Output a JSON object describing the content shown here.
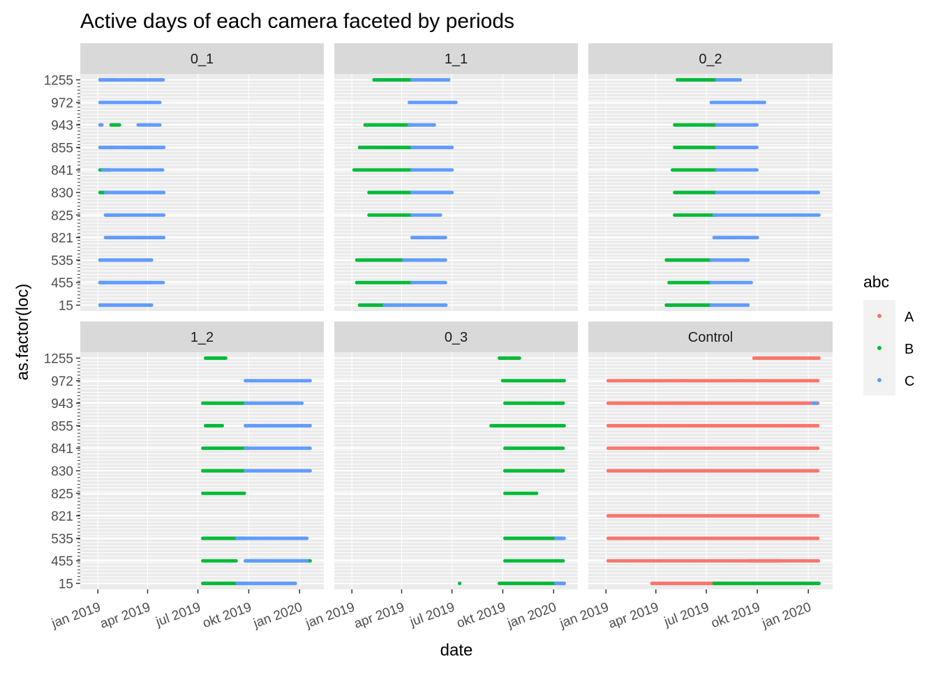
{
  "chart_data": {
    "type": "scatter",
    "title": "Active days of each camera faceted by periods",
    "xlabel": "date",
    "ylabel": "as.factor(loc)",
    "x_ticks": [
      "jan 2019",
      "apr 2019",
      "jul 2019",
      "okt 2019",
      "jan 2020"
    ],
    "x_tick_dates": [
      "2019-01-01",
      "2019-04-01",
      "2019-07-01",
      "2019-10-01",
      "2020-01-01"
    ],
    "xlim": [
      "2018-12-20",
      "2020-01-25"
    ],
    "y_ticks": [
      "15",
      "455",
      "535",
      "821",
      "825",
      "830",
      "841",
      "855",
      "943",
      "972",
      "1255"
    ],
    "grid": true,
    "legend": {
      "title": "abc",
      "position": "right",
      "entries": [
        {
          "label": "A",
          "color": "#F8766D"
        },
        {
          "label": "B",
          "color": "#00BA38"
        },
        {
          "label": "C",
          "color": "#619CFF"
        }
      ]
    },
    "facets": [
      {
        "label": "0_1",
        "series": [
          {
            "name": "B",
            "segments": [
              {
                "y": "1255",
                "from": "2019-01-05",
                "to": "2019-01-08"
              },
              {
                "y": "1255",
                "from": "2019-01-25",
                "to": "2019-02-01"
              },
              {
                "y": "943",
                "from": "2019-01-25",
                "to": "2019-02-10"
              },
              {
                "y": "855",
                "from": "2019-01-25",
                "to": "2019-02-01"
              },
              {
                "y": "841",
                "from": "2019-01-05",
                "to": "2019-01-25"
              },
              {
                "y": "830",
                "from": "2019-01-05",
                "to": "2019-01-20"
              },
              {
                "y": "825",
                "from": "2019-01-15",
                "to": "2019-02-10"
              },
              {
                "y": "535",
                "from": "2019-01-05",
                "to": "2019-01-10"
              },
              {
                "y": "455",
                "from": "2019-01-05",
                "to": "2019-01-15"
              },
              {
                "y": "15",
                "from": "2019-01-05",
                "to": "2019-01-20"
              }
            ]
          },
          {
            "name": "C",
            "segments": [
              {
                "y": "1255",
                "from": "2019-01-05",
                "to": "2019-05-01"
              },
              {
                "y": "972",
                "from": "2019-01-05",
                "to": "2019-04-25"
              },
              {
                "y": "943",
                "from": "2019-01-05",
                "to": "2019-01-10"
              },
              {
                "y": "943",
                "from": "2019-03-15",
                "to": "2019-04-25"
              },
              {
                "y": "855",
                "from": "2019-01-05",
                "to": "2019-04-25"
              },
              {
                "y": "855",
                "from": "2019-02-20",
                "to": "2019-05-01"
              },
              {
                "y": "841",
                "from": "2019-01-10",
                "to": "2019-04-30"
              },
              {
                "y": "830",
                "from": "2019-01-15",
                "to": "2019-04-30"
              },
              {
                "y": "825",
                "from": "2019-01-15",
                "to": "2019-05-01"
              },
              {
                "y": "821",
                "from": "2019-01-15",
                "to": "2019-05-01"
              },
              {
                "y": "535",
                "from": "2019-01-05",
                "to": "2019-04-10"
              },
              {
                "y": "455",
                "from": "2019-01-05",
                "to": "2019-04-10"
              },
              {
                "y": "455",
                "from": "2019-01-05",
                "to": "2019-05-01"
              },
              {
                "y": "15",
                "from": "2019-01-05",
                "to": "2019-04-10"
              }
            ]
          }
        ]
      },
      {
        "label": "1_1",
        "series": [
          {
            "name": "B",
            "segments": [
              {
                "y": "1255",
                "from": "2019-02-10",
                "to": "2019-04-20"
              },
              {
                "y": "943",
                "from": "2019-01-25",
                "to": "2019-04-20"
              },
              {
                "y": "855",
                "from": "2019-01-15",
                "to": "2019-04-20"
              },
              {
                "y": "841",
                "from": "2019-01-05",
                "to": "2019-04-20"
              },
              {
                "y": "830",
                "from": "2019-02-01",
                "to": "2019-04-20"
              },
              {
                "y": "825",
                "from": "2019-02-01",
                "to": "2019-04-20"
              },
              {
                "y": "535",
                "from": "2019-01-10",
                "to": "2019-04-05"
              },
              {
                "y": "455",
                "from": "2019-01-10",
                "to": "2019-04-20"
              },
              {
                "y": "15",
                "from": "2019-01-15",
                "to": "2019-04-20"
              }
            ]
          },
          {
            "name": "C",
            "segments": [
              {
                "y": "1255",
                "from": "2019-04-20",
                "to": "2019-06-25"
              },
              {
                "y": "972",
                "from": "2019-04-15",
                "to": "2019-07-10"
              },
              {
                "y": "943",
                "from": "2019-04-15",
                "to": "2019-06-01"
              },
              {
                "y": "855",
                "from": "2019-04-20",
                "to": "2019-07-01"
              },
              {
                "y": "841",
                "from": "2019-04-20",
                "to": "2019-07-01"
              },
              {
                "y": "830",
                "from": "2019-04-20",
                "to": "2019-07-01"
              },
              {
                "y": "825",
                "from": "2019-04-20",
                "to": "2019-06-10"
              },
              {
                "y": "821",
                "from": "2019-04-20",
                "to": "2019-06-20"
              },
              {
                "y": "535",
                "from": "2019-04-05",
                "to": "2019-06-20"
              },
              {
                "y": "455",
                "from": "2019-04-20",
                "to": "2019-06-20"
              },
              {
                "y": "15",
                "from": "2019-03-01",
                "to": "2019-06-20"
              }
            ]
          }
        ]
      },
      {
        "label": "0_2",
        "series": [
          {
            "name": "B",
            "segments": [
              {
                "y": "1255",
                "from": "2019-05-10",
                "to": "2019-07-20"
              },
              {
                "y": "943",
                "from": "2019-05-05",
                "to": "2019-07-20"
              },
              {
                "y": "855",
                "from": "2019-05-05",
                "to": "2019-07-20"
              },
              {
                "y": "841",
                "from": "2019-05-01",
                "to": "2019-07-20"
              },
              {
                "y": "830",
                "from": "2019-05-05",
                "to": "2019-07-20"
              },
              {
                "y": "825",
                "from": "2019-05-05",
                "to": "2019-07-20"
              },
              {
                "y": "535",
                "from": "2019-04-20",
                "to": "2019-07-10"
              },
              {
                "y": "455",
                "from": "2019-04-25",
                "to": "2019-07-10"
              },
              {
                "y": "15",
                "from": "2019-04-20",
                "to": "2019-07-10"
              }
            ]
          },
          {
            "name": "C",
            "segments": [
              {
                "y": "1255",
                "from": "2019-07-20",
                "to": "2019-09-01"
              },
              {
                "y": "972",
                "from": "2019-07-10",
                "to": "2019-10-15"
              },
              {
                "y": "943",
                "from": "2019-07-20",
                "to": "2019-10-01"
              },
              {
                "y": "855",
                "from": "2019-07-20",
                "to": "2019-10-01"
              },
              {
                "y": "841",
                "from": "2019-07-20",
                "to": "2019-10-01"
              },
              {
                "y": "830",
                "from": "2019-07-20",
                "to": "2020-01-20"
              },
              {
                "y": "825",
                "from": "2019-07-15",
                "to": "2020-01-20"
              },
              {
                "y": "821",
                "from": "2019-07-15",
                "to": "2019-10-01"
              },
              {
                "y": "535",
                "from": "2019-07-10",
                "to": "2019-09-15"
              },
              {
                "y": "455",
                "from": "2019-07-10",
                "to": "2019-09-20"
              },
              {
                "y": "15",
                "from": "2019-07-10",
                "to": "2019-09-15"
              }
            ]
          }
        ]
      },
      {
        "label": "1_2",
        "series": [
          {
            "name": "B",
            "segments": [
              {
                "y": "1255",
                "from": "2019-07-15",
                "to": "2019-08-20"
              },
              {
                "y": "943",
                "from": "2019-07-10",
                "to": "2019-09-25"
              },
              {
                "y": "855",
                "from": "2019-07-15",
                "to": "2019-08-15"
              },
              {
                "y": "841",
                "from": "2019-07-10",
                "to": "2019-10-01"
              },
              {
                "y": "830",
                "from": "2019-07-10",
                "to": "2019-09-25"
              },
              {
                "y": "825",
                "from": "2019-07-10",
                "to": "2019-09-25"
              },
              {
                "y": "535",
                "from": "2019-07-10",
                "to": "2019-09-25"
              },
              {
                "y": "455",
                "from": "2019-07-10",
                "to": "2019-09-10"
              },
              {
                "y": "455",
                "from": "2019-09-25",
                "to": "2020-01-20"
              },
              {
                "y": "15",
                "from": "2019-07-10",
                "to": "2019-09-25"
              }
            ]
          },
          {
            "name": "C",
            "segments": [
              {
                "y": "972",
                "from": "2019-09-25",
                "to": "2020-01-20"
              },
              {
                "y": "943",
                "from": "2019-09-25",
                "to": "2020-01-05"
              },
              {
                "y": "855",
                "from": "2019-09-25",
                "to": "2020-01-20"
              },
              {
                "y": "841",
                "from": "2019-09-25",
                "to": "2020-01-20"
              },
              {
                "y": "830",
                "from": "2019-09-25",
                "to": "2020-01-20"
              },
              {
                "y": "535",
                "from": "2019-09-10",
                "to": "2020-01-15"
              },
              {
                "y": "455",
                "from": "2019-09-25",
                "to": "2020-01-15"
              },
              {
                "y": "15",
                "from": "2019-09-10",
                "to": "2019-12-25"
              }
            ]
          }
        ]
      },
      {
        "label": "0_3",
        "series": [
          {
            "name": "B",
            "segments": [
              {
                "y": "1255",
                "from": "2019-09-25",
                "to": "2019-11-01"
              },
              {
                "y": "972",
                "from": "2019-10-01",
                "to": "2020-01-20"
              },
              {
                "y": "943",
                "from": "2019-10-05",
                "to": "2020-01-20"
              },
              {
                "y": "855",
                "from": "2019-09-10",
                "to": "2020-01-20"
              },
              {
                "y": "841",
                "from": "2019-10-05",
                "to": "2020-01-20"
              },
              {
                "y": "830",
                "from": "2019-10-05",
                "to": "2020-01-20"
              },
              {
                "y": "825",
                "from": "2019-10-05",
                "to": "2019-12-01"
              },
              {
                "y": "535",
                "from": "2019-10-05",
                "to": "2020-01-15"
              },
              {
                "y": "455",
                "from": "2019-10-05",
                "to": "2020-01-20"
              },
              {
                "y": "15",
                "from": "2019-07-15",
                "to": "2019-07-15"
              },
              {
                "y": "15",
                "from": "2019-09-25",
                "to": "2020-01-20"
              }
            ]
          },
          {
            "name": "C",
            "segments": [
              {
                "y": "535",
                "from": "2020-01-05",
                "to": "2020-01-20"
              },
              {
                "y": "15",
                "from": "2020-01-05",
                "to": "2020-01-20"
              }
            ]
          }
        ]
      },
      {
        "label": "Control",
        "series": [
          {
            "name": "A",
            "segments": [
              {
                "y": "1255",
                "from": "2019-09-25",
                "to": "2020-01-20"
              },
              {
                "y": "972",
                "from": "2019-01-05",
                "to": "2020-01-20"
              },
              {
                "y": "943",
                "from": "2019-01-05",
                "to": "2020-01-20"
              },
              {
                "y": "855",
                "from": "2019-01-05",
                "to": "2020-01-20"
              },
              {
                "y": "841",
                "from": "2019-01-05",
                "to": "2020-01-20"
              },
              {
                "y": "830",
                "from": "2019-01-05",
                "to": "2020-01-20"
              },
              {
                "y": "821",
                "from": "2019-01-05",
                "to": "2020-01-20"
              },
              {
                "y": "535",
                "from": "2019-01-05",
                "to": "2020-01-20"
              },
              {
                "y": "455",
                "from": "2019-01-05",
                "to": "2019-11-15"
              },
              {
                "y": "455",
                "from": "2019-09-15",
                "to": "2020-01-20"
              },
              {
                "y": "15",
                "from": "2019-03-25",
                "to": "2019-12-15"
              }
            ]
          },
          {
            "name": "B",
            "segments": [
              {
                "y": "15",
                "from": "2019-07-15",
                "to": "2020-01-20"
              }
            ]
          },
          {
            "name": "C",
            "segments": [
              {
                "y": "943",
                "from": "2020-01-10",
                "to": "2020-01-18"
              }
            ]
          }
        ]
      }
    ]
  }
}
